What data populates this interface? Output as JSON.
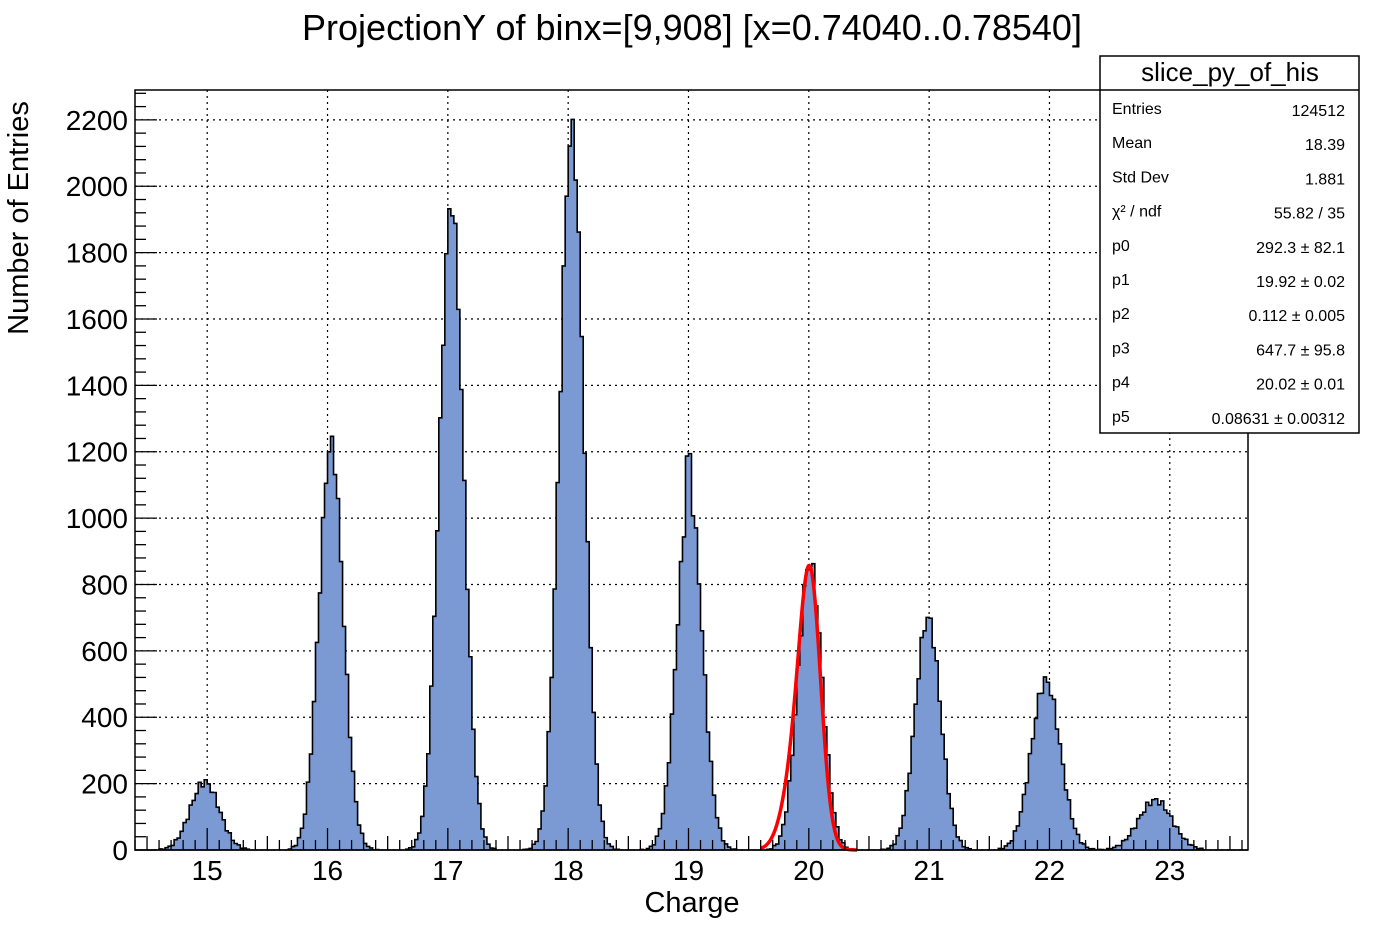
{
  "chart_data": {
    "type": "bar",
    "histogram": true,
    "title": "ProjectionY of binx=[9,908] [x=0.74040..0.78540]",
    "xlabel": "Charge",
    "ylabel": "Number of Entries",
    "xlim": [
      14.4,
      23.65
    ],
    "ylim": [
      0,
      2200
    ],
    "y_display_max": 2290,
    "xticks": [
      "15",
      "16",
      "17",
      "18",
      "19",
      "20",
      "21",
      "22",
      "23"
    ],
    "yticks": [
      "0",
      "200",
      "400",
      "600",
      "800",
      "1000",
      "1200",
      "1400",
      "1600",
      "1800",
      "2000",
      "2200"
    ],
    "grid": true,
    "bin_width": 0.025,
    "peaks": [
      {
        "x": 14.98,
        "height": 205,
        "sigma": 0.12
      },
      {
        "x": 16.03,
        "height": 1225,
        "sigma": 0.1
      },
      {
        "x": 17.03,
        "height": 1950,
        "sigma": 0.1
      },
      {
        "x": 18.03,
        "height": 2170,
        "sigma": 0.1
      },
      {
        "x": 19.01,
        "height": 1070,
        "sigma": 0.105
      },
      {
        "x": 20.01,
        "height": 870,
        "sigma": 0.1
      },
      {
        "x": 20.99,
        "height": 700,
        "sigma": 0.105
      },
      {
        "x": 21.97,
        "height": 510,
        "sigma": 0.12
      },
      {
        "x": 22.88,
        "height": 150,
        "sigma": 0.14
      }
    ],
    "spikes": [
      {
        "x": 19.0,
        "height": 1180
      }
    ],
    "fit": {
      "color": "#ff0000",
      "xrange": [
        19.6,
        20.4
      ],
      "components": [
        {
          "amp": 292.3,
          "mean": 19.92,
          "sigma": 0.112
        },
        {
          "amp": 647.7,
          "mean": 20.02,
          "sigma": 0.08631
        }
      ]
    },
    "fill_color": "#7b9ad4",
    "line_color": "#000000",
    "legend_position": "top-right",
    "stats": {
      "title": "slice_py_of_his",
      "rows": [
        {
          "label": "Entries",
          "value": "124512"
        },
        {
          "label": "Mean",
          "value": "18.39"
        },
        {
          "label": "Std Dev",
          "value": "1.881"
        },
        {
          "label": "χ² / ndf",
          "value": "55.82 / 35"
        },
        {
          "label": "p0",
          "value": "292.3 ± 82.1"
        },
        {
          "label": "p1",
          "value": "19.92 ± 0.02"
        },
        {
          "label": "p2",
          "value": "0.112 ± 0.005"
        },
        {
          "label": "p3",
          "value": "647.7 ± 95.8"
        },
        {
          "label": "p4",
          "value": "20.02 ± 0.01"
        },
        {
          "label": "p5",
          "value": "0.08631 ± 0.00312"
        }
      ]
    }
  }
}
